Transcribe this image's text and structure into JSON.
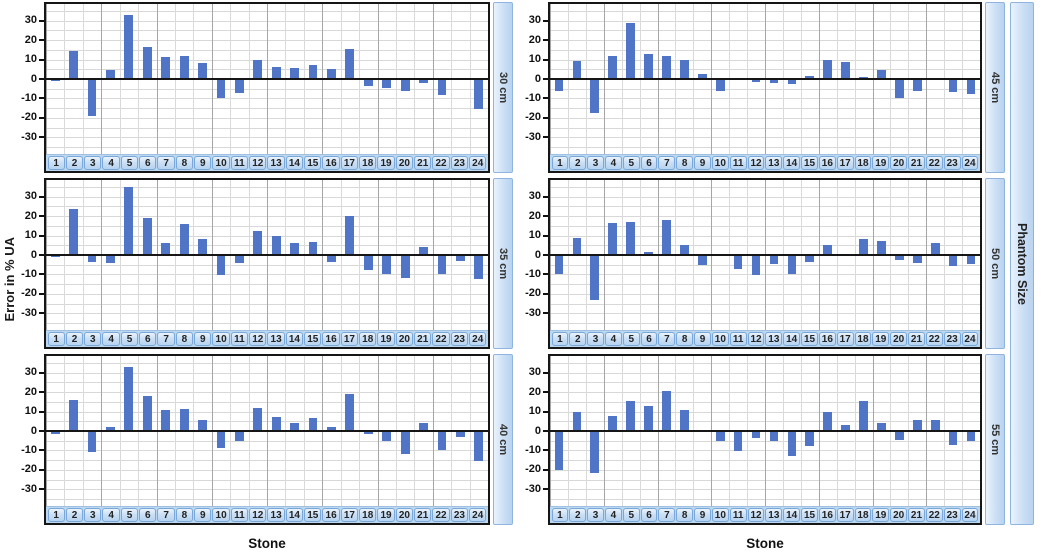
{
  "chart_data": {
    "type": "bar",
    "title": "",
    "xlabel": "Stone",
    "ylabel": "Error in % UA",
    "panel_variable": "Phantom Size",
    "bar_color": "#5074C6",
    "grid": true,
    "categories": [
      "1",
      "2",
      "3",
      "4",
      "5",
      "6",
      "7",
      "8",
      "9",
      "10",
      "11",
      "12",
      "13",
      "14",
      "15",
      "16",
      "17",
      "18",
      "19",
      "20",
      "21",
      "22",
      "23",
      "24"
    ],
    "y_ticks": [
      30,
      20,
      10,
      0,
      -10,
      -20,
      -30
    ],
    "ylim": [
      -38.5,
      38.5
    ],
    "columns": [
      {
        "panels": [
          {
            "label": "30 cm",
            "values": [
              -1,
              14.5,
              -19,
              4.5,
              33,
              16.5,
              11.5,
              12,
              8,
              -9.5,
              -7,
              10,
              6,
              5.5,
              7,
              5,
              15.5,
              -3.5,
              -4.5,
              -6,
              -2,
              -8,
              -0.5,
              -15.5
            ]
          },
          {
            "label": "35 cm",
            "values": [
              -1,
              23.5,
              -3.5,
              -4,
              35,
              19,
              6,
              16,
              8,
              -10.5,
              -4,
              12.5,
              9.5,
              6,
              6.5,
              -3.5,
              20,
              -7.5,
              -10,
              -12,
              4,
              -9.5,
              -3,
              -12.5
            ]
          },
          {
            "label": "40 cm",
            "values": [
              -1.5,
              16,
              -11,
              2,
              33,
              18,
              11,
              11.5,
              5.5,
              -8.5,
              -5,
              12,
              7,
              4,
              6.5,
              2,
              19,
              -1.5,
              -5,
              -12,
              4,
              -10,
              -3,
              -15.5
            ]
          }
        ]
      },
      {
        "panels": [
          {
            "label": "45 cm",
            "values": [
              -6,
              9,
              -17.5,
              12,
              28.5,
              13,
              12,
              10,
              2.5,
              -6,
              -0.5,
              -1.5,
              -2,
              -2.5,
              1.5,
              9.5,
              8.5,
              1,
              4.5,
              -10,
              -6,
              0.5,
              -6.5,
              -7.5
            ]
          },
          {
            "label": "50 cm",
            "values": [
              -9.5,
              8.5,
              -23,
              16.5,
              17,
              1.5,
              18,
              5,
              -5,
              0.5,
              -7,
              -10.5,
              -4.5,
              -10,
              -3.5,
              5,
              0.5,
              8,
              7,
              -2.5,
              -4,
              6,
              -5.5,
              -4.5
            ]
          },
          {
            "label": "55 cm",
            "values": [
              -20,
              10,
              -21.5,
              7.5,
              15.5,
              13,
              20.5,
              11,
              0,
              -5,
              -10.5,
              -3.5,
              -5,
              -13,
              -7.5,
              9.5,
              3,
              15.5,
              4,
              -4.5,
              5.5,
              5.5,
              -7,
              -5
            ]
          }
        ]
      }
    ]
  }
}
